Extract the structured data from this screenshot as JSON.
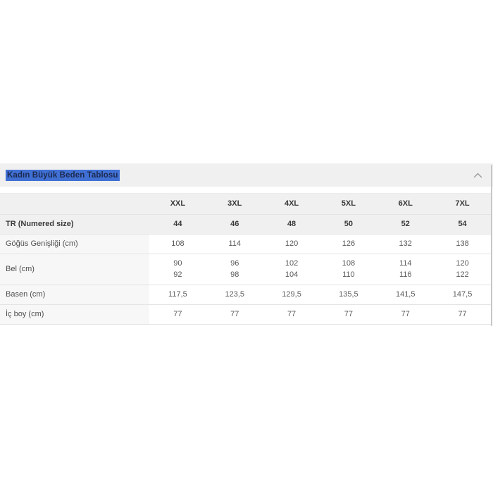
{
  "accordion": {
    "title": "Kadın Büyük Beden Tablosu",
    "chevron_icon": "chevron-up",
    "title_highlight_color": "#4070d4",
    "title_text_color": "#1d2a4f"
  },
  "size_table": {
    "columns": [
      "XXL",
      "3XL",
      "4XL",
      "5XL",
      "6XL",
      "7XL"
    ],
    "rows": [
      {
        "label": "TR (Numered size)",
        "header": true,
        "values": [
          "44",
          "46",
          "48",
          "50",
          "52",
          "54"
        ]
      },
      {
        "label": "Göğüs Genişliği (cm)",
        "header": false,
        "values": [
          "108",
          "114",
          "120",
          "126",
          "132",
          "138"
        ]
      },
      {
        "label": "Bel (cm)",
        "header": false,
        "values": [
          [
            "90",
            "92"
          ],
          [
            "96",
            "98"
          ],
          [
            "102",
            "104"
          ],
          [
            "108",
            "110"
          ],
          [
            "114",
            "116"
          ],
          [
            "120",
            "122"
          ]
        ]
      },
      {
        "label": "Basen (cm)",
        "header": false,
        "values": [
          "117,5",
          "123,5",
          "129,5",
          "135,5",
          "141,5",
          "147,5"
        ]
      },
      {
        "label": "İç boy (cm)",
        "header": false,
        "values": [
          "77",
          "77",
          "77",
          "77",
          "77",
          "77"
        ]
      }
    ]
  },
  "colors": {
    "panel_background": "#f0f0f0",
    "label_column_background": "#f7f7f7",
    "cell_background": "#ffffff",
    "divider": "#e4e4e4",
    "chevron": "#999999",
    "scrollbar": "#c7c7c7"
  }
}
